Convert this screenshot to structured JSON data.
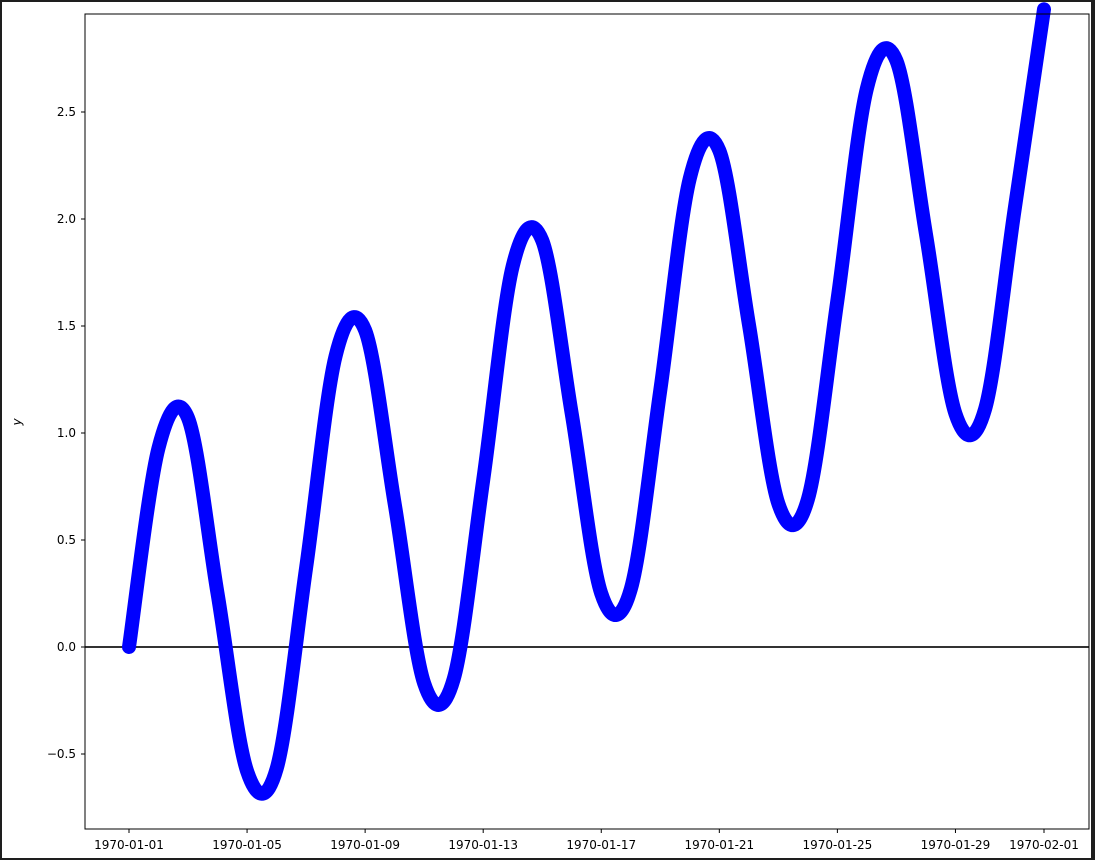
{
  "chart_data": {
    "type": "line",
    "title": "",
    "xlabel": "",
    "ylabel": "y",
    "x_type": "date",
    "x_range": [
      "1970-01-01",
      "1970-02-01"
    ],
    "ylim": [
      -0.85,
      3.0
    ],
    "x_ticks": [
      "1970-01-01",
      "1970-01-05",
      "1970-01-09",
      "1970-01-13",
      "1970-01-17",
      "1970-01-21",
      "1970-01-25",
      "1970-01-29",
      "1970-02-01"
    ],
    "y_ticks": [
      "−0.5",
      "0.0",
      "0.5",
      "1.0",
      "1.5",
      "2.0",
      "2.5"
    ],
    "y_tick_values": [
      -0.5,
      0.0,
      0.5,
      1.0,
      1.5,
      2.0,
      2.5
    ],
    "reference_line": {
      "y": 0.0,
      "color": "#333333"
    },
    "grid": false,
    "legend": false,
    "series": [
      {
        "color": "#0000ff",
        "marker": "circle",
        "x": [
          "1970-01-01",
          "1970-01-02",
          "1970-01-03",
          "1970-01-04",
          "1970-01-05",
          "1970-01-06",
          "1970-01-07",
          "1970-01-08",
          "1970-01-09",
          "1970-01-10",
          "1970-01-11",
          "1970-01-12",
          "1970-01-13",
          "1970-01-14",
          "1970-01-15",
          "1970-01-16",
          "1970-01-17",
          "1970-01-18",
          "1970-01-19",
          "1970-01-20",
          "1970-01-21",
          "1970-01-22",
          "1970-01-23",
          "1970-01-24",
          "1970-01-25",
          "1970-01-26",
          "1970-01-27",
          "1970-01-28",
          "1970-01-29",
          "1970-01-30",
          "1970-01-31",
          "1970-02-01"
        ],
        "y": [
          0.0,
          0.93,
          1.07,
          0.25,
          -0.58,
          -0.57,
          0.37,
          1.36,
          1.48,
          0.67,
          -0.17,
          -0.15,
          0.78,
          1.78,
          1.9,
          1.09,
          0.25,
          0.27,
          1.2,
          2.19,
          2.32,
          1.51,
          0.67,
          0.69,
          1.62,
          2.61,
          2.74,
          1.93,
          1.09,
          1.11,
          2.04,
          2.98
        ]
      }
    ]
  }
}
